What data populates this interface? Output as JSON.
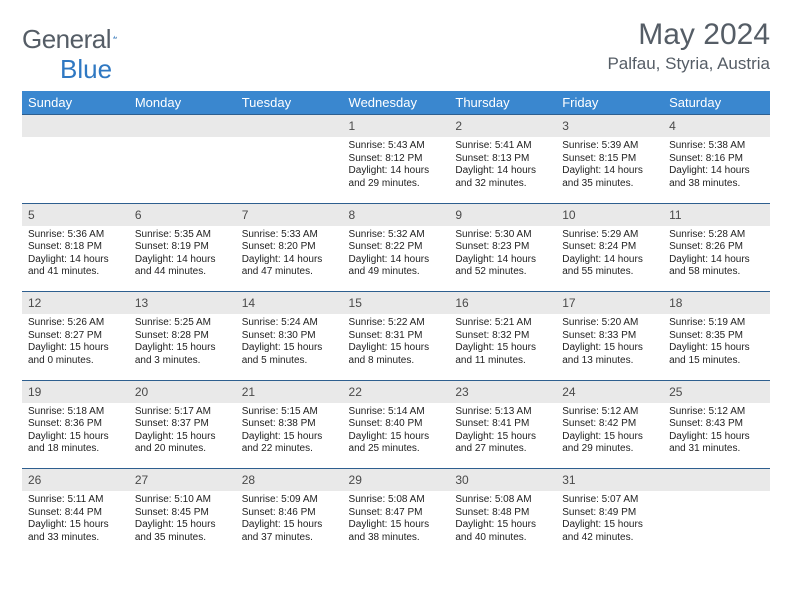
{
  "brand": {
    "name1": "General",
    "name2": "Blue"
  },
  "title": "May 2024",
  "location": "Palfau, Styria, Austria",
  "colors": {
    "header_bg": "#3a87cf",
    "header_text": "#ffffff",
    "daynum_bg": "#e9e9e9",
    "rule": "#2e5f8f",
    "title_text": "#555d66",
    "logo_blue": "#2f78c2"
  },
  "days_of_week": [
    "Sunday",
    "Monday",
    "Tuesday",
    "Wednesday",
    "Thursday",
    "Friday",
    "Saturday"
  ],
  "weeks": [
    [
      {
        "n": "",
        "sr": "",
        "ss": "",
        "dl": ""
      },
      {
        "n": "",
        "sr": "",
        "ss": "",
        "dl": ""
      },
      {
        "n": "",
        "sr": "",
        "ss": "",
        "dl": ""
      },
      {
        "n": "1",
        "sr": "5:43 AM",
        "ss": "8:12 PM",
        "dl": "14 hours and 29 minutes."
      },
      {
        "n": "2",
        "sr": "5:41 AM",
        "ss": "8:13 PM",
        "dl": "14 hours and 32 minutes."
      },
      {
        "n": "3",
        "sr": "5:39 AM",
        "ss": "8:15 PM",
        "dl": "14 hours and 35 minutes."
      },
      {
        "n": "4",
        "sr": "5:38 AM",
        "ss": "8:16 PM",
        "dl": "14 hours and 38 minutes."
      }
    ],
    [
      {
        "n": "5",
        "sr": "5:36 AM",
        "ss": "8:18 PM",
        "dl": "14 hours and 41 minutes."
      },
      {
        "n": "6",
        "sr": "5:35 AM",
        "ss": "8:19 PM",
        "dl": "14 hours and 44 minutes."
      },
      {
        "n": "7",
        "sr": "5:33 AM",
        "ss": "8:20 PM",
        "dl": "14 hours and 47 minutes."
      },
      {
        "n": "8",
        "sr": "5:32 AM",
        "ss": "8:22 PM",
        "dl": "14 hours and 49 minutes."
      },
      {
        "n": "9",
        "sr": "5:30 AM",
        "ss": "8:23 PM",
        "dl": "14 hours and 52 minutes."
      },
      {
        "n": "10",
        "sr": "5:29 AM",
        "ss": "8:24 PM",
        "dl": "14 hours and 55 minutes."
      },
      {
        "n": "11",
        "sr": "5:28 AM",
        "ss": "8:26 PM",
        "dl": "14 hours and 58 minutes."
      }
    ],
    [
      {
        "n": "12",
        "sr": "5:26 AM",
        "ss": "8:27 PM",
        "dl": "15 hours and 0 minutes."
      },
      {
        "n": "13",
        "sr": "5:25 AM",
        "ss": "8:28 PM",
        "dl": "15 hours and 3 minutes."
      },
      {
        "n": "14",
        "sr": "5:24 AM",
        "ss": "8:30 PM",
        "dl": "15 hours and 5 minutes."
      },
      {
        "n": "15",
        "sr": "5:22 AM",
        "ss": "8:31 PM",
        "dl": "15 hours and 8 minutes."
      },
      {
        "n": "16",
        "sr": "5:21 AM",
        "ss": "8:32 PM",
        "dl": "15 hours and 11 minutes."
      },
      {
        "n": "17",
        "sr": "5:20 AM",
        "ss": "8:33 PM",
        "dl": "15 hours and 13 minutes."
      },
      {
        "n": "18",
        "sr": "5:19 AM",
        "ss": "8:35 PM",
        "dl": "15 hours and 15 minutes."
      }
    ],
    [
      {
        "n": "19",
        "sr": "5:18 AM",
        "ss": "8:36 PM",
        "dl": "15 hours and 18 minutes."
      },
      {
        "n": "20",
        "sr": "5:17 AM",
        "ss": "8:37 PM",
        "dl": "15 hours and 20 minutes."
      },
      {
        "n": "21",
        "sr": "5:15 AM",
        "ss": "8:38 PM",
        "dl": "15 hours and 22 minutes."
      },
      {
        "n": "22",
        "sr": "5:14 AM",
        "ss": "8:40 PM",
        "dl": "15 hours and 25 minutes."
      },
      {
        "n": "23",
        "sr": "5:13 AM",
        "ss": "8:41 PM",
        "dl": "15 hours and 27 minutes."
      },
      {
        "n": "24",
        "sr": "5:12 AM",
        "ss": "8:42 PM",
        "dl": "15 hours and 29 minutes."
      },
      {
        "n": "25",
        "sr": "5:12 AM",
        "ss": "8:43 PM",
        "dl": "15 hours and 31 minutes."
      }
    ],
    [
      {
        "n": "26",
        "sr": "5:11 AM",
        "ss": "8:44 PM",
        "dl": "15 hours and 33 minutes."
      },
      {
        "n": "27",
        "sr": "5:10 AM",
        "ss": "8:45 PM",
        "dl": "15 hours and 35 minutes."
      },
      {
        "n": "28",
        "sr": "5:09 AM",
        "ss": "8:46 PM",
        "dl": "15 hours and 37 minutes."
      },
      {
        "n": "29",
        "sr": "5:08 AM",
        "ss": "8:47 PM",
        "dl": "15 hours and 38 minutes."
      },
      {
        "n": "30",
        "sr": "5:08 AM",
        "ss": "8:48 PM",
        "dl": "15 hours and 40 minutes."
      },
      {
        "n": "31",
        "sr": "5:07 AM",
        "ss": "8:49 PM",
        "dl": "15 hours and 42 minutes."
      },
      {
        "n": "",
        "sr": "",
        "ss": "",
        "dl": ""
      }
    ]
  ],
  "labels": {
    "sunrise": "Sunrise:",
    "sunset": "Sunset:",
    "daylight": "Daylight:"
  }
}
